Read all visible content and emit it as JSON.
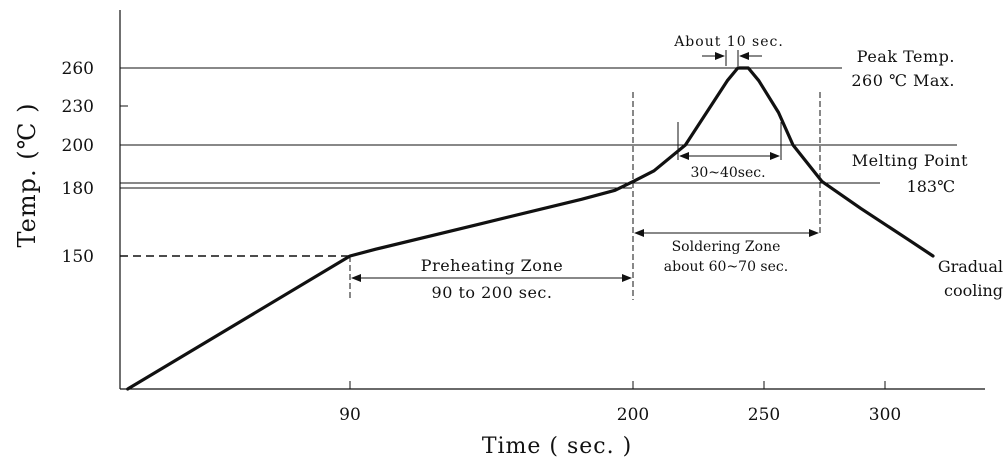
{
  "chart_data": {
    "type": "line",
    "title": "",
    "xlabel": "Time ( sec. )",
    "ylabel": "Temp. (℃ )",
    "x_ticks": [
      90,
      200,
      250,
      300
    ],
    "y_ticks": [
      150,
      180,
      200,
      230,
      260
    ],
    "series": [
      {
        "values": [
          {
            "x": 3,
            "y": 75
          },
          {
            "x": 90,
            "y": 150
          },
          {
            "x": 100,
            "y": 153
          },
          {
            "x": 140,
            "y": 164
          },
          {
            "x": 180,
            "y": 175
          },
          {
            "x": 193,
            "y": 179
          },
          {
            "x": 200,
            "y": 183
          },
          {
            "x": 208,
            "y": 188
          },
          {
            "x": 220,
            "y": 200
          },
          {
            "x": 236,
            "y": 250
          },
          {
            "x": 240,
            "y": 260
          },
          {
            "x": 244,
            "y": 260
          },
          {
            "x": 248,
            "y": 250
          },
          {
            "x": 256,
            "y": 225
          },
          {
            "x": 262,
            "y": 200
          },
          {
            "x": 274,
            "y": 183
          },
          {
            "x": 290,
            "y": 171
          },
          {
            "x": 310,
            "y": 157
          },
          {
            "x": 320,
            "y": 150
          }
        ]
      }
    ],
    "annotations": {
      "about_10": "About 10 sec.",
      "peak_line1": "Peak Temp.",
      "peak_line2": "260 ℃ Max.",
      "melt_line1": "Melting Point",
      "melt_line2": "183℃",
      "range_30_40": "30~40sec.",
      "solder_line1": "Soldering Zone",
      "solder_line2": "about 60~70 sec.",
      "preheat_line1": "Preheating Zone",
      "preheat_line2": "90 to 200 sec.",
      "gradual_line1": "Gradual",
      "gradual_line2": "cooling"
    }
  }
}
